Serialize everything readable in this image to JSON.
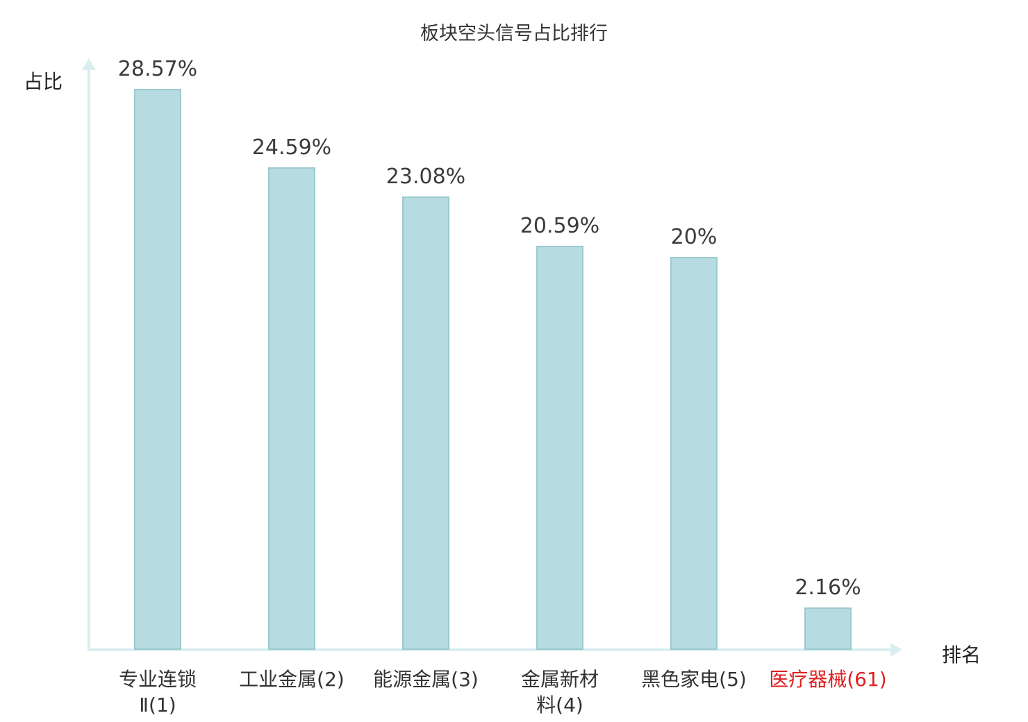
{
  "chart_data": {
    "type": "bar",
    "title": "板块空头信号占比排行",
    "xlabel": "排名",
    "ylabel": "占比",
    "categories": [
      "专业连锁\nⅡ(1)",
      "工业金属(2)",
      "能源金属(3)",
      "金属新材\n料(4)",
      "黑色家电(5)",
      "医疗器械(61)"
    ],
    "values": [
      28.57,
      24.59,
      23.08,
      20.59,
      20,
      2.16
    ],
    "value_labels": [
      "28.57%",
      "24.59%",
      "23.08%",
      "20.59%",
      "20%",
      "2.16%"
    ],
    "category_label_colors": [
      "#333333",
      "#333333",
      "#333333",
      "#333333",
      "#333333",
      "#e01f1f"
    ],
    "ylim": [
      0,
      30
    ],
    "grid": false,
    "legend": "none",
    "colors": {
      "bar_fill": "#b6dce1",
      "bar_border": "#9cc9d0",
      "axis": "#d9eef0",
      "text": "#333333",
      "highlight": "#e01f1f"
    }
  }
}
